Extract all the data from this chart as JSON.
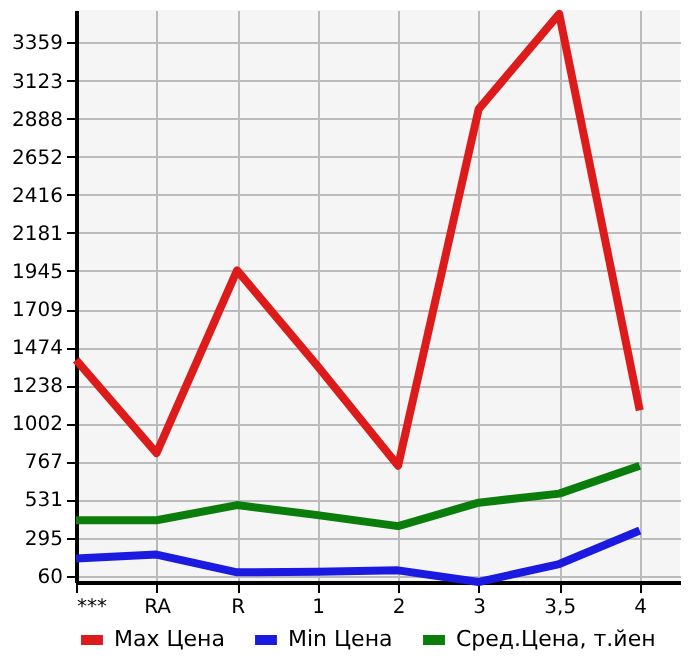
{
  "chart_data": {
    "type": "line",
    "categories": [
      "***",
      "RA",
      "R",
      "1",
      "2",
      "3",
      "3,5",
      "4"
    ],
    "series": [
      {
        "name": "Max Цена",
        "color": "#dd1b1b",
        "values": [
          1395,
          818,
          1949,
          1356,
          740,
          2947,
          3536,
          1082
        ]
      },
      {
        "name": "Min Цена",
        "color": "#1a1ae0",
        "values": [
          166,
          190,
          80,
          84,
          92,
          20,
          131,
          339
        ]
      },
      {
        "name": "Сред.Цена, т.йен",
        "color": "#0a7d0a",
        "values": [
          402,
          402,
          496,
          434,
          366,
          511,
          567,
          740
        ]
      }
    ],
    "ylim": [
      20,
      3560
    ],
    "yticks": [
      60,
      295,
      531,
      767,
      1002,
      1238,
      1474,
      1709,
      1945,
      2181,
      2416,
      2652,
      2888,
      3123,
      3359
    ],
    "grid": true,
    "legend": "bottom",
    "marker": "none",
    "line_style": "solid"
  }
}
